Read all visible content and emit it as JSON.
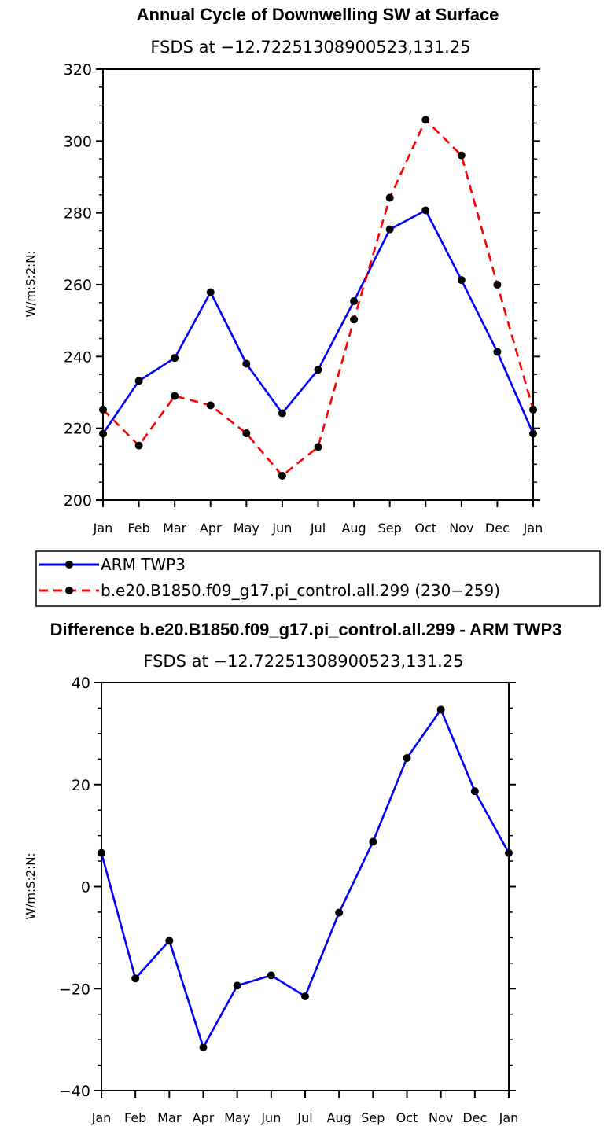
{
  "chart_data": [
    {
      "type": "line",
      "title": "Annual Cycle of Downwelling SW at Surface",
      "subtitle": "FSDS at −12.72251308900523,131.25",
      "ylabel": "W/m:S:2:N:",
      "categories": [
        "Jan",
        "Feb",
        "Mar",
        "Apr",
        "May",
        "Jun",
        "Jul",
        "Aug",
        "Sep",
        "Oct",
        "Nov",
        "Dec",
        "Jan"
      ],
      "ylim": [
        200,
        320
      ],
      "yticks": [
        200,
        220,
        240,
        260,
        280,
        300,
        320
      ],
      "ytick_labels": [
        "200",
        "220",
        "240",
        "260",
        "280",
        "300",
        "320"
      ],
      "series": [
        {
          "name": "ARM TWP3",
          "color": "#0000ff",
          "dash": false,
          "values": [
            218.5,
            233.2,
            239.6,
            257.9,
            238.0,
            224.2,
            236.3,
            255.4,
            275.4,
            280.7,
            261.3,
            241.3,
            218.5
          ]
        },
        {
          "name": "b.e20.B1850.f09_g17.pi_control.all.299 (230−259)",
          "color": "#ff0000",
          "dash": true,
          "values": [
            225.2,
            215.2,
            229.0,
            226.4,
            218.6,
            206.8,
            214.8,
            250.3,
            284.2,
            305.9,
            296.0,
            260.0,
            225.2
          ]
        }
      ],
      "legend": "below"
    },
    {
      "type": "line",
      "title": "Difference b.e20.B1850.f09_g17.pi_control.all.299 - ARM TWP3",
      "subtitle": "FSDS at −12.72251308900523,131.25",
      "ylabel": "W/m:S:2:N:",
      "categories": [
        "Jan",
        "Feb",
        "Mar",
        "Apr",
        "May",
        "Jun",
        "Jul",
        "Aug",
        "Sep",
        "Oct",
        "Nov",
        "Dec",
        "Jan"
      ],
      "ylim": [
        -40,
        40
      ],
      "yticks": [
        -40,
        -20,
        0,
        20,
        40
      ],
      "ytick_labels": [
        "−40",
        "−20",
        "0",
        "20",
        "40"
      ],
      "series": [
        {
          "color": "#0000ff",
          "dash": false,
          "values": [
            6.6,
            -18.0,
            -10.6,
            -31.5,
            -19.4,
            -17.4,
            -21.5,
            -5.1,
            8.8,
            25.2,
            34.7,
            18.7,
            6.6
          ]
        }
      ]
    }
  ]
}
